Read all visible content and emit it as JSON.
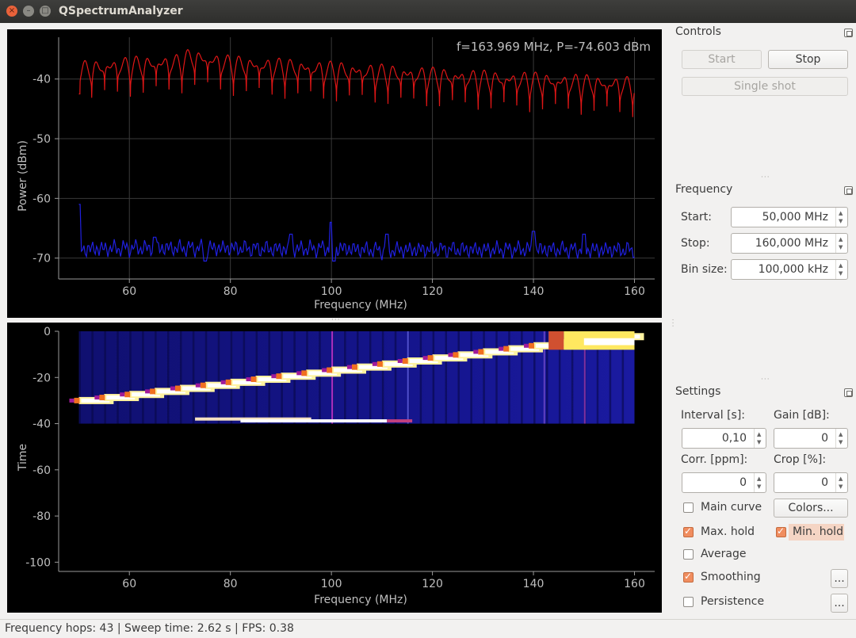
{
  "window": {
    "title": "QSpectrumAnalyzer",
    "close_glyph": "×",
    "min_glyph": "–",
    "max_glyph": "□"
  },
  "spectrum_plot": {
    "readout": "f=163.969 MHz, P=-74.603 dBm",
    "xlabel": "Frequency (MHz)",
    "ylabel": "Power (dBm)"
  },
  "waterfall_plot": {
    "xlabel": "Frequency (MHz)",
    "ylabel": "Time"
  },
  "chart_data": [
    {
      "type": "line",
      "xlabel": "Frequency (MHz)",
      "ylabel": "Power (dBm)",
      "xlim": [
        46,
        164
      ],
      "ylim": [
        -73.5,
        -33
      ],
      "x_ticks": [
        60,
        80,
        100,
        120,
        140,
        160
      ],
      "y_ticks": [
        -40,
        -50,
        -60,
        -70
      ],
      "grid": true,
      "series": [
        {
          "color": "#e01616",
          "x": [
            50,
            60,
            70,
            72,
            80,
            90,
            100,
            110,
            120,
            130,
            140,
            150,
            160
          ],
          "y": [
            -37,
            -36.2,
            -35.8,
            -34.8,
            -36,
            -36.5,
            -37,
            -37.5,
            -38,
            -38.5,
            -38.8,
            -39.2,
            -39.6
          ]
        },
        {
          "color": "#2020e0",
          "x": [
            50,
            60,
            70,
            80,
            90,
            100,
            110,
            120,
            130,
            140,
            150,
            160
          ],
          "y": [
            -68.2,
            -68,
            -68,
            -68,
            -68.2,
            -68,
            -68.4,
            -68.2,
            -68.3,
            -68.2,
            -68.3,
            -68.3
          ]
        }
      ]
    },
    {
      "type": "heatmap",
      "xlabel": "Frequency (MHz)",
      "ylabel": "Time",
      "xlim": [
        46,
        164
      ],
      "ylim": [
        -104,
        0
      ],
      "x_ticks": [
        60,
        80,
        100,
        120,
        140,
        160
      ],
      "y_ticks": [
        0,
        -20,
        -40,
        -60,
        -80,
        -100
      ],
      "x_range_data": [
        50,
        160
      ],
      "time_range_data": [
        0,
        -40
      ],
      "colormap": [
        "#000020",
        "#1a1aa0",
        "#8a1a9a",
        "#f07020",
        "#fff060",
        "#ffffff"
      ]
    }
  ],
  "controls": {
    "title": "Controls",
    "start_label": "Start",
    "stop_label": "Stop",
    "single_shot_label": "Single shot"
  },
  "frequency": {
    "title": "Frequency",
    "start_label": "Start:",
    "start_value": "50,000 MHz",
    "stop_label": "Stop:",
    "stop_value": "160,000 MHz",
    "bin_label": "Bin size:",
    "bin_value": "100,000 kHz"
  },
  "settings": {
    "title": "Settings",
    "interval_label": "Interval [s]:",
    "interval_value": "0,10",
    "gain_label": "Gain [dB]:",
    "gain_value": "0",
    "corr_label": "Corr. [ppm]:",
    "corr_value": "0",
    "crop_label": "Crop [%]:",
    "crop_value": "0",
    "main_curve_label": "Main curve",
    "main_curve_checked": false,
    "colors_label": "Colors...",
    "max_hold_label": "Max. hold",
    "max_hold_checked": true,
    "min_hold_label": "Min. hold",
    "min_hold_checked": true,
    "average_label": "Average",
    "average_checked": false,
    "smoothing_label": "Smoothing",
    "smoothing_checked": true,
    "smoothing_more_label": "...",
    "persistence_label": "Persistence",
    "persistence_checked": false,
    "persistence_more_label": "..."
  },
  "status": {
    "text": "Frequency hops: 43 | Sweep time: 2.62 s | FPS: 0.38"
  }
}
